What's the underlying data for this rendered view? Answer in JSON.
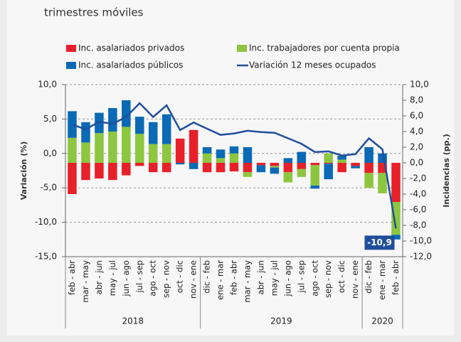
{
  "subtitle": "trimestres móviles",
  "chart_data": {
    "type": "bar_line",
    "categories": [
      "feb - abr",
      "mar - may",
      "abr - jun",
      "may - jul",
      "jun - ago",
      "jul - sep",
      "ago - oct",
      "sep - nov",
      "oct - dic",
      "nov - ene",
      "dic - feb",
      "ene - mar",
      "feb - abr",
      "mar - may",
      "abr - jun",
      "may - jul",
      "jun - ago",
      "jul - sep",
      "ago - oct",
      "sep - nov",
      "oct - dic",
      "nov - ene",
      "dic - feb",
      "ene - mar",
      "feb - abr"
    ],
    "year_groups": [
      {
        "label": "2018",
        "count": 10
      },
      {
        "label": "2019",
        "count": 12
      },
      {
        "label": "2020",
        "count": 3
      }
    ],
    "series": [
      {
        "name": "Inc. asalariados privados",
        "color": "#e8202a",
        "kind": "bar",
        "axis": "y2",
        "values": [
          -4.0,
          -2.2,
          -2.0,
          -2.2,
          -1.6,
          -0.4,
          -1.2,
          -1.2,
          3.1,
          4.2,
          -1.2,
          -1.2,
          -1.1,
          -1.2,
          -0.3,
          -0.4,
          -1.2,
          -0.8,
          -0.3,
          -0.1,
          -1.2,
          -0.4,
          -1.3,
          -1.3,
          -5.0
        ]
      },
      {
        "name": "Inc. trabajadores por cuenta propia",
        "color": "#8dc63f",
        "kind": "bar",
        "axis": "y2",
        "values": [
          3.2,
          2.6,
          3.8,
          4.0,
          4.6,
          3.7,
          2.4,
          2.4,
          0,
          0,
          1.2,
          0.6,
          1.2,
          -0.6,
          0,
          -0.2,
          -1.3,
          -1.0,
          -2.6,
          1.2,
          0.4,
          0,
          -1.9,
          -2.6,
          -4.2
        ]
      },
      {
        "name": "Inc. asalariados públicos",
        "color": "#0a6ab5",
        "kind": "bar",
        "axis": "y2",
        "values": [
          3.4,
          2.6,
          2.6,
          3.0,
          3.4,
          2.2,
          2.8,
          3.8,
          -0.2,
          -0.8,
          0.8,
          1.1,
          0.9,
          2.0,
          -0.9,
          -0.8,
          0.6,
          1.4,
          -0.4,
          -2.0,
          0.5,
          -0.3,
          2.0,
          1.2,
          -0.6
        ]
      },
      {
        "name": "Variación 12 meses ocupados",
        "color": "#1f4e9c",
        "kind": "line",
        "values": [
          4.2,
          3.5,
          4.6,
          4.3,
          5.3,
          7.3,
          5.3,
          7.0,
          3.4,
          4.5,
          3.6,
          2.7,
          2.9,
          3.3,
          3.1,
          3.0,
          2.2,
          1.4,
          0.2,
          0.3,
          -0.3,
          -0.1,
          2.2,
          0.6,
          -10.9
        ],
        "value_labels": [
          null,
          null,
          null,
          null,
          null,
          null,
          null,
          null,
          null,
          null,
          null,
          null,
          null,
          null,
          null,
          null,
          null,
          null,
          null,
          null,
          null,
          null,
          null,
          null,
          "-10,9"
        ]
      }
    ],
    "ylabel": "Variación (%)",
    "y2label": "Incidencias (pp.)",
    "ylim": [
      -15,
      10
    ],
    "yticks": [
      {
        "value": -15,
        "label": "-15,0"
      },
      {
        "value": -10,
        "label": "-10,0"
      },
      {
        "value": -5,
        "label": "-5,0"
      },
      {
        "value": 0,
        "label": "0,0"
      },
      {
        "value": 5,
        "label": "5,0"
      },
      {
        "value": 10,
        "label": "10,0"
      }
    ],
    "y2lim": [
      -12,
      10
    ],
    "y2ticks": [
      {
        "value": -12,
        "label": "-12,0"
      },
      {
        "value": -10,
        "label": "-10,0"
      },
      {
        "value": -8,
        "label": "-8,0"
      },
      {
        "value": -6,
        "label": "-6,0"
      },
      {
        "value": -4,
        "label": "-4,0"
      },
      {
        "value": -2,
        "label": "-2,0"
      },
      {
        "value": 0,
        "label": "0,0"
      },
      {
        "value": 2,
        "label": "2,0"
      },
      {
        "value": 4,
        "label": "4,0"
      },
      {
        "value": 6,
        "label": "6,0"
      },
      {
        "value": 8,
        "label": "8,0"
      },
      {
        "value": 10,
        "label": "10,0"
      }
    ],
    "grid": true
  }
}
